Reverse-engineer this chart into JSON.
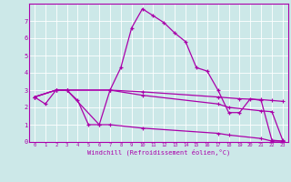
{
  "xlabel": "Windchill (Refroidissement éolien,°C)",
  "xlim": [
    -0.5,
    23.5
  ],
  "ylim": [
    0,
    8
  ],
  "xticks": [
    0,
    1,
    2,
    3,
    4,
    5,
    6,
    7,
    8,
    9,
    10,
    11,
    12,
    13,
    14,
    15,
    16,
    17,
    18,
    19,
    20,
    21,
    22,
    23
  ],
  "yticks": [
    0,
    1,
    2,
    3,
    4,
    5,
    6,
    7
  ],
  "bg_color": "#cce8e8",
  "line_color": "#aa00aa",
  "line1": {
    "x": [
      0,
      1,
      2,
      3,
      4,
      5,
      6,
      7,
      8,
      9,
      10,
      11,
      12,
      13,
      14,
      15,
      16,
      17,
      18,
      19,
      20,
      21,
      22,
      23
    ],
    "y": [
      2.6,
      2.2,
      3.0,
      3.0,
      2.4,
      1.0,
      1.0,
      3.0,
      4.3,
      6.6,
      7.7,
      7.3,
      6.9,
      6.3,
      5.8,
      4.3,
      4.1,
      3.0,
      1.7,
      1.7,
      2.5,
      2.4,
      0.1,
      0.05
    ]
  },
  "line2": {
    "x": [
      0,
      2,
      3,
      7,
      10,
      17,
      19,
      21,
      22,
      23
    ],
    "y": [
      2.6,
      3.0,
      3.0,
      3.0,
      2.9,
      2.6,
      2.5,
      2.45,
      2.4,
      2.35
    ]
  },
  "line3": {
    "x": [
      0,
      2,
      3,
      7,
      10,
      17,
      18,
      21,
      22,
      23
    ],
    "y": [
      2.6,
      3.0,
      3.0,
      3.0,
      2.7,
      2.2,
      2.0,
      1.8,
      1.75,
      0.1
    ]
  },
  "line4": {
    "x": [
      0,
      2,
      3,
      6,
      7,
      10,
      17,
      18,
      21,
      22,
      23
    ],
    "y": [
      2.6,
      3.0,
      3.0,
      1.0,
      1.0,
      0.8,
      0.5,
      0.4,
      0.2,
      0.05,
      0.05
    ]
  }
}
